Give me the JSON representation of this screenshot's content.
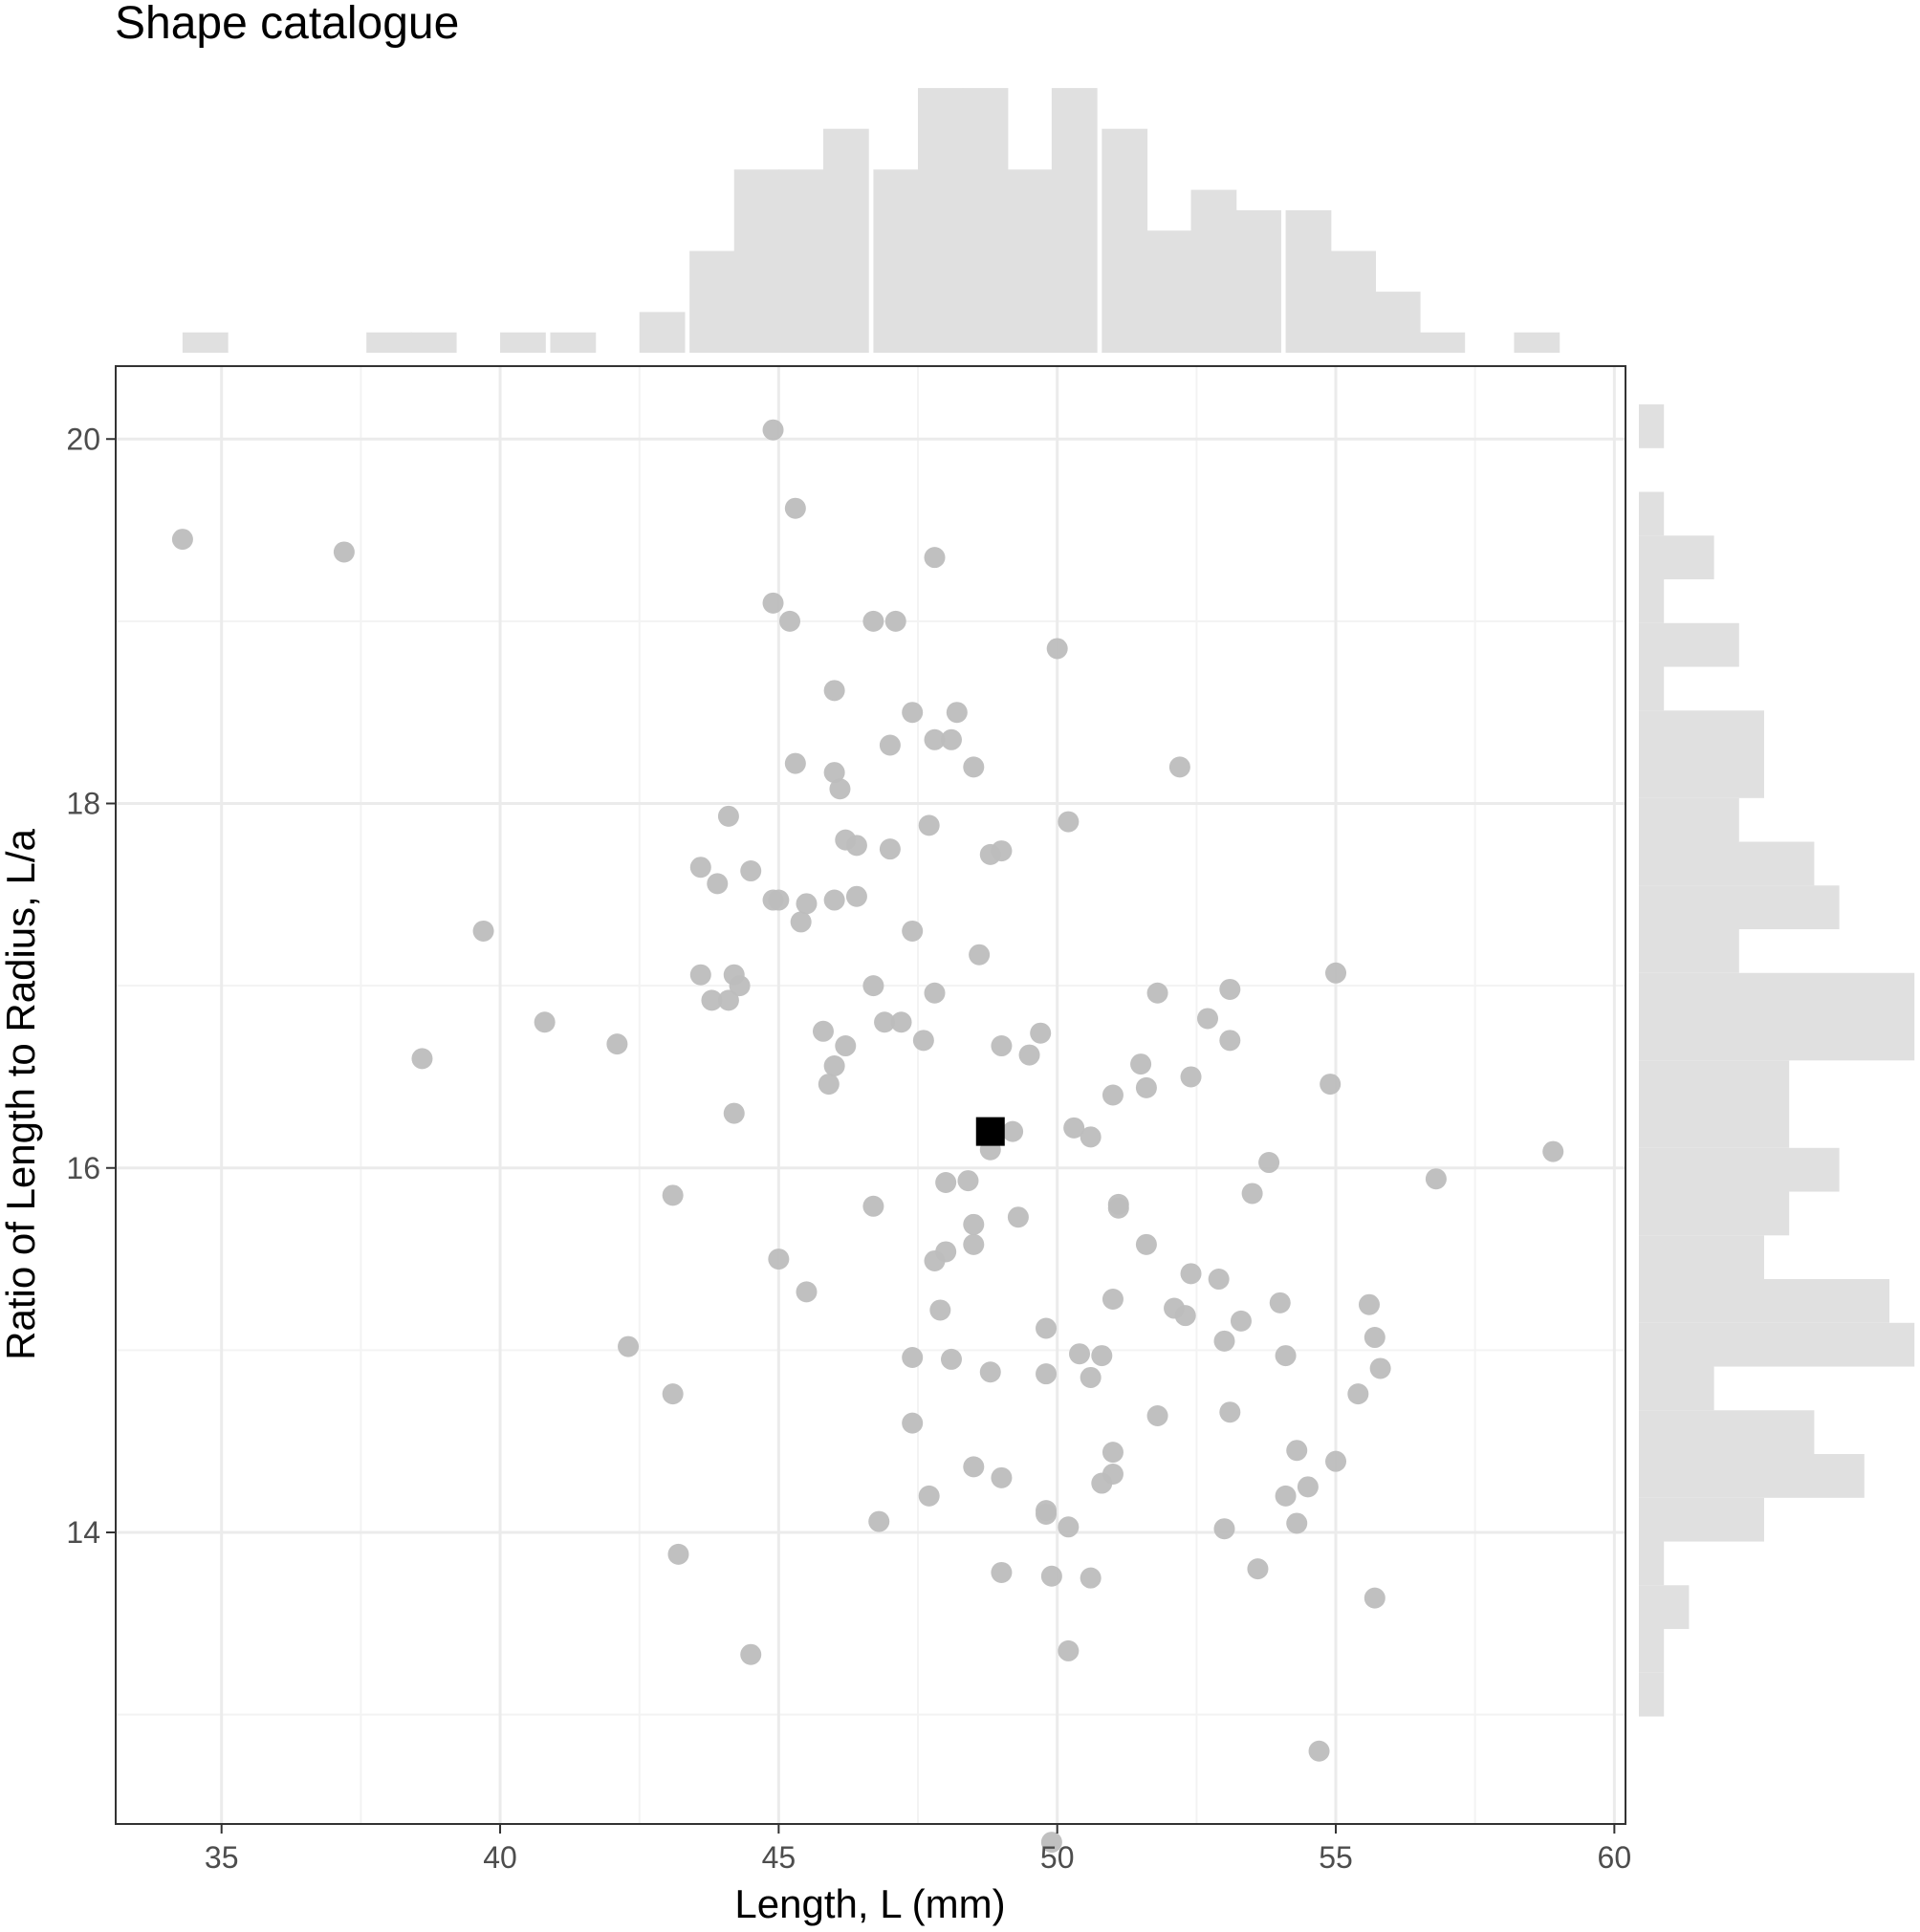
{
  "chart_data": {
    "type": "scatter",
    "title": "Shape catalogue",
    "xlabel": "Length, L (mm)",
    "ylabel": "Ratio of Length to Radius, L/a",
    "xlim": [
      33.1,
      60.2
    ],
    "ylim": [
      12.4,
      20.4
    ],
    "xticks": [
      35,
      40,
      45,
      50,
      55,
      60
    ],
    "yticks": [
      14,
      16,
      18,
      20
    ],
    "xtick_labels": [
      "35",
      "40",
      "45",
      "50",
      "55",
      "60"
    ],
    "ytick_labels": [
      "14",
      "16",
      "18",
      "20"
    ],
    "grid": true,
    "colors": {
      "point": "#bdbdbd",
      "highlight": "#000000",
      "histogram": "#e0e0e0",
      "grid_major": "#ebebeb",
      "grid_minor": "#f3f3f3",
      "panel_border": "#333333"
    },
    "points": [
      [
        34.3,
        19.45
      ],
      [
        37.2,
        19.38
      ],
      [
        39.7,
        17.3
      ],
      [
        38.6,
        16.6
      ],
      [
        40.8,
        16.8
      ],
      [
        42.1,
        16.68
      ],
      [
        42.3,
        15.02
      ],
      [
        43.1,
        14.76
      ],
      [
        43.2,
        13.88
      ],
      [
        43.1,
        15.85
      ],
      [
        43.6,
        17.65
      ],
      [
        43.9,
        17.56
      ],
      [
        43.6,
        17.06
      ],
      [
        43.8,
        16.92
      ],
      [
        44.1,
        17.93
      ],
      [
        44.1,
        16.92
      ],
      [
        44.2,
        17.06
      ],
      [
        44.3,
        17.0
      ],
      [
        44.2,
        16.3
      ],
      [
        44.5,
        17.63
      ],
      [
        44.5,
        13.33
      ],
      [
        44.9,
        17.47
      ],
      [
        45.0,
        17.47
      ],
      [
        44.9,
        19.1
      ],
      [
        44.9,
        20.05
      ],
      [
        45.2,
        19.0
      ],
      [
        45.3,
        18.22
      ],
      [
        45.3,
        19.62
      ],
      [
        45.4,
        17.35
      ],
      [
        45.5,
        17.45
      ],
      [
        45.0,
        15.5
      ],
      [
        45.5,
        15.32
      ],
      [
        45.8,
        16.75
      ],
      [
        45.9,
        16.46
      ],
      [
        46.0,
        16.56
      ],
      [
        46.0,
        17.47
      ],
      [
        46.0,
        18.62
      ],
      [
        46.0,
        18.17
      ],
      [
        46.1,
        18.08
      ],
      [
        46.2,
        17.8
      ],
      [
        46.2,
        16.67
      ],
      [
        46.4,
        17.77
      ],
      [
        46.4,
        17.49
      ],
      [
        46.7,
        17.0
      ],
      [
        46.7,
        19.0
      ],
      [
        46.7,
        15.79
      ],
      [
        46.8,
        14.06
      ],
      [
        46.9,
        16.8
      ],
      [
        47.0,
        18.32
      ],
      [
        47.0,
        17.75
      ],
      [
        47.1,
        19.0
      ],
      [
        47.2,
        16.8
      ],
      [
        47.4,
        18.5
      ],
      [
        47.4,
        17.3
      ],
      [
        47.4,
        14.96
      ],
      [
        47.4,
        14.6
      ],
      [
        47.6,
        16.7
      ],
      [
        47.7,
        17.88
      ],
      [
        47.7,
        14.2
      ],
      [
        47.8,
        18.35
      ],
      [
        47.8,
        19.35
      ],
      [
        47.8,
        16.96
      ],
      [
        47.8,
        15.49
      ],
      [
        47.9,
        15.22
      ],
      [
        48.0,
        15.92
      ],
      [
        48.0,
        15.54
      ],
      [
        48.1,
        14.95
      ],
      [
        48.1,
        18.35
      ],
      [
        48.2,
        18.5
      ],
      [
        48.4,
        15.93
      ],
      [
        48.5,
        18.2
      ],
      [
        48.5,
        15.69
      ],
      [
        48.5,
        15.58
      ],
      [
        48.5,
        14.36
      ],
      [
        48.6,
        17.17
      ],
      [
        48.8,
        17.72
      ],
      [
        48.8,
        16.1
      ],
      [
        48.8,
        14.88
      ],
      [
        49.0,
        17.74
      ],
      [
        49.0,
        16.67
      ],
      [
        49.0,
        14.3
      ],
      [
        49.0,
        13.78
      ],
      [
        49.2,
        16.2
      ],
      [
        49.3,
        15.73
      ],
      [
        49.5,
        16.62
      ],
      [
        49.7,
        16.74
      ],
      [
        49.8,
        15.12
      ],
      [
        49.8,
        14.87
      ],
      [
        49.8,
        14.12
      ],
      [
        49.8,
        14.1
      ],
      [
        49.9,
        13.76
      ],
      [
        49.9,
        12.3
      ],
      [
        50.0,
        18.85
      ],
      [
        50.2,
        17.9
      ],
      [
        50.2,
        14.03
      ],
      [
        50.2,
        13.35
      ],
      [
        50.3,
        16.22
      ],
      [
        50.4,
        14.98
      ],
      [
        50.6,
        16.17
      ],
      [
        50.6,
        14.85
      ],
      [
        50.6,
        13.75
      ],
      [
        50.8,
        14.97
      ],
      [
        50.8,
        14.27
      ],
      [
        51.0,
        16.4
      ],
      [
        51.0,
        15.28
      ],
      [
        51.0,
        14.44
      ],
      [
        51.0,
        14.32
      ],
      [
        51.1,
        15.8
      ],
      [
        51.1,
        15.78
      ],
      [
        51.5,
        16.57
      ],
      [
        51.6,
        16.44
      ],
      [
        51.6,
        15.58
      ],
      [
        51.8,
        16.96
      ],
      [
        51.8,
        14.64
      ],
      [
        52.1,
        15.23
      ],
      [
        52.2,
        18.2
      ],
      [
        52.3,
        15.19
      ],
      [
        52.4,
        16.5
      ],
      [
        52.4,
        15.42
      ],
      [
        52.7,
        16.82
      ],
      [
        52.9,
        15.39
      ],
      [
        53.0,
        15.05
      ],
      [
        53.0,
        14.02
      ],
      [
        53.1,
        16.98
      ],
      [
        53.1,
        16.7
      ],
      [
        53.1,
        14.66
      ],
      [
        53.3,
        15.16
      ],
      [
        53.5,
        15.86
      ],
      [
        53.6,
        13.8
      ],
      [
        53.8,
        16.03
      ],
      [
        54.0,
        15.26
      ],
      [
        54.1,
        14.97
      ],
      [
        54.1,
        14.2
      ],
      [
        54.3,
        14.45
      ],
      [
        54.3,
        14.05
      ],
      [
        54.5,
        14.25
      ],
      [
        54.7,
        12.8
      ],
      [
        54.9,
        16.46
      ],
      [
        55.0,
        17.07
      ],
      [
        55.0,
        14.39
      ],
      [
        55.4,
        14.76
      ],
      [
        55.6,
        15.25
      ],
      [
        55.7,
        15.07
      ],
      [
        55.7,
        13.64
      ],
      [
        55.8,
        14.9
      ],
      [
        56.8,
        15.94
      ],
      [
        58.9,
        16.09
      ]
    ],
    "highlight_point": [
      48.8,
      16.2
    ],
    "x_histogram": {
      "bin_width": 0.82,
      "bins": [
        [
          34.3,
          1
        ],
        [
          37.6,
          1
        ],
        [
          38.4,
          1
        ],
        [
          40.0,
          1
        ],
        [
          40.9,
          1
        ],
        [
          42.5,
          2
        ],
        [
          43.4,
          5
        ],
        [
          44.2,
          9
        ],
        [
          45.0,
          9
        ],
        [
          45.8,
          11
        ],
        [
          46.7,
          9
        ],
        [
          47.5,
          13
        ],
        [
          48.3,
          13
        ],
        [
          49.1,
          9
        ],
        [
          49.9,
          13
        ],
        [
          50.8,
          11
        ],
        [
          51.6,
          6
        ],
        [
          52.4,
          8
        ],
        [
          53.2,
          7
        ],
        [
          54.1,
          7
        ],
        [
          54.9,
          5
        ],
        [
          55.7,
          3
        ],
        [
          56.5,
          1
        ],
        [
          58.2,
          1
        ]
      ]
    },
    "y_histogram": {
      "bin_width": 0.24,
      "bins": [
        [
          19.95,
          1
        ],
        [
          19.47,
          1
        ],
        [
          19.23,
          3
        ],
        [
          18.99,
          1
        ],
        [
          18.75,
          4
        ],
        [
          18.51,
          1
        ],
        [
          18.27,
          5
        ],
        [
          18.03,
          5
        ],
        [
          17.79,
          4
        ],
        [
          17.55,
          7
        ],
        [
          17.31,
          8
        ],
        [
          17.07,
          4
        ],
        [
          16.83,
          11
        ],
        [
          16.59,
          11
        ],
        [
          16.35,
          6
        ],
        [
          16.11,
          6
        ],
        [
          15.87,
          8
        ],
        [
          15.63,
          6
        ],
        [
          15.39,
          5
        ],
        [
          15.15,
          10
        ],
        [
          14.91,
          11
        ],
        [
          14.67,
          3
        ],
        [
          14.43,
          7
        ],
        [
          14.19,
          9
        ],
        [
          13.95,
          5
        ],
        [
          13.71,
          1
        ],
        [
          13.47,
          2
        ],
        [
          13.23,
          1
        ],
        [
          12.99,
          1
        ]
      ]
    }
  }
}
